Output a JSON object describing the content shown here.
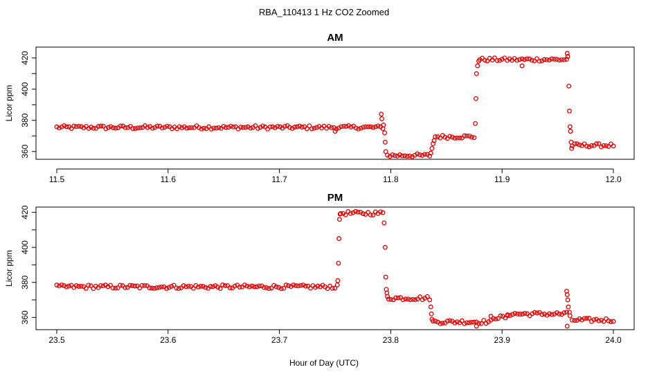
{
  "figure": {
    "title": "RBA_110413  1 Hz CO2 Zoomed",
    "xlabel": "Hour of Day (UTC)"
  },
  "chart_data": [
    {
      "type": "scatter",
      "title": "AM",
      "xlabel": "Hour of Day (UTC)",
      "ylabel": "Licor ppm",
      "xlim": [
        11.5,
        12.0
      ],
      "ylim": [
        355,
        427
      ],
      "xticks": [
        11.5,
        11.6,
        11.7,
        11.8,
        11.9,
        12.0
      ],
      "xtick_labels": [
        "11.5",
        "11.6",
        "11.7",
        "11.8",
        "11.9",
        "12.0"
      ],
      "yticks": [
        360,
        370,
        380,
        390,
        400,
        410,
        420
      ],
      "ytick_labels": [
        "360",
        "",
        "380",
        "",
        "400",
        "",
        "420"
      ],
      "grid": false,
      "marker": "open-circle",
      "color": "#e00000",
      "segments": [
        {
          "x_start": 11.5,
          "x_end": 11.793,
          "value": 375.5
        },
        {
          "x_start": 11.797,
          "x_end": 11.835,
          "value": 357.5
        },
        {
          "x_start": 11.84,
          "x_end": 11.875,
          "value": 369.5
        },
        {
          "x_start": 11.88,
          "x_end": 11.958,
          "value": 419
        },
        {
          "x_start": 11.963,
          "x_end": 12.0,
          "value": 364
        }
      ],
      "transitions": [
        {
          "x": 11.7915,
          "y": 384
        },
        {
          "x": 11.792,
          "y": 381
        },
        {
          "x": 11.7935,
          "y": 377
        },
        {
          "x": 11.7945,
          "y": 372
        },
        {
          "x": 11.795,
          "y": 366
        },
        {
          "x": 11.7955,
          "y": 360
        },
        {
          "x": 11.836,
          "y": 359
        },
        {
          "x": 11.837,
          "y": 362
        },
        {
          "x": 11.838,
          "y": 365
        },
        {
          "x": 11.839,
          "y": 367
        },
        {
          "x": 11.876,
          "y": 378
        },
        {
          "x": 11.8765,
          "y": 394
        },
        {
          "x": 11.877,
          "y": 410
        },
        {
          "x": 11.878,
          "y": 415
        },
        {
          "x": 11.879,
          "y": 418
        },
        {
          "x": 11.9585,
          "y": 423
        },
        {
          "x": 11.959,
          "y": 421
        },
        {
          "x": 11.96,
          "y": 402
        },
        {
          "x": 11.9605,
          "y": 386
        },
        {
          "x": 11.961,
          "y": 376
        },
        {
          "x": 11.9615,
          "y": 373
        },
        {
          "x": 11.962,
          "y": 366
        },
        {
          "x": 11.9625,
          "y": 362
        },
        {
          "x": 11.75,
          "y": 373
        },
        {
          "x": 11.918,
          "y": 415
        }
      ]
    },
    {
      "type": "scatter",
      "title": "PM",
      "xlabel": "Hour of Day (UTC)",
      "ylabel": "Licor ppm",
      "xlim": [
        23.5,
        24.0
      ],
      "ylim": [
        353,
        423
      ],
      "xticks": [
        23.5,
        23.6,
        23.7,
        23.8,
        23.9,
        24.0
      ],
      "xtick_labels": [
        "23.5",
        "23.6",
        "23.7",
        "23.8",
        "23.9",
        "24.0"
      ],
      "yticks": [
        360,
        370,
        380,
        390,
        400,
        410,
        420
      ],
      "ytick_labels": [
        "360",
        "",
        "380",
        "",
        "400",
        "",
        "420"
      ],
      "grid": false,
      "marker": "open-circle",
      "color": "#e00000",
      "segments": [
        {
          "x_start": 23.5,
          "x_end": 23.752,
          "value": 377.5
        },
        {
          "x_start": 23.755,
          "x_end": 23.793,
          "value": 419.5
        },
        {
          "x_start": 23.798,
          "x_end": 23.835,
          "value": 371
        },
        {
          "x_start": 23.838,
          "x_end": 23.89,
          "value": 357.5
        },
        {
          "x_start": 23.89,
          "x_end": 23.905,
          "value": 360
        },
        {
          "x_start": 23.905,
          "x_end": 23.958,
          "value": 362
        },
        {
          "x_start": 23.963,
          "x_end": 24.0,
          "value": 358.5
        }
      ],
      "transitions": [
        {
          "x": 23.7525,
          "y": 381
        },
        {
          "x": 23.753,
          "y": 391
        },
        {
          "x": 23.7535,
          "y": 405
        },
        {
          "x": 23.754,
          "y": 416
        },
        {
          "x": 23.7545,
          "y": 419
        },
        {
          "x": 23.794,
          "y": 414
        },
        {
          "x": 23.795,
          "y": 400
        },
        {
          "x": 23.7955,
          "y": 383
        },
        {
          "x": 23.796,
          "y": 376
        },
        {
          "x": 23.7965,
          "y": 374
        },
        {
          "x": 23.797,
          "y": 372
        },
        {
          "x": 23.836,
          "y": 366
        },
        {
          "x": 23.8365,
          "y": 362
        },
        {
          "x": 23.837,
          "y": 359
        },
        {
          "x": 23.958,
          "y": 375
        },
        {
          "x": 23.9585,
          "y": 373
        },
        {
          "x": 23.959,
          "y": 370
        },
        {
          "x": 23.9595,
          "y": 366
        },
        {
          "x": 23.9605,
          "y": 363
        },
        {
          "x": 23.961,
          "y": 361
        },
        {
          "x": 23.9585,
          "y": 355
        },
        {
          "x": 23.877,
          "y": 355
        }
      ]
    }
  ]
}
